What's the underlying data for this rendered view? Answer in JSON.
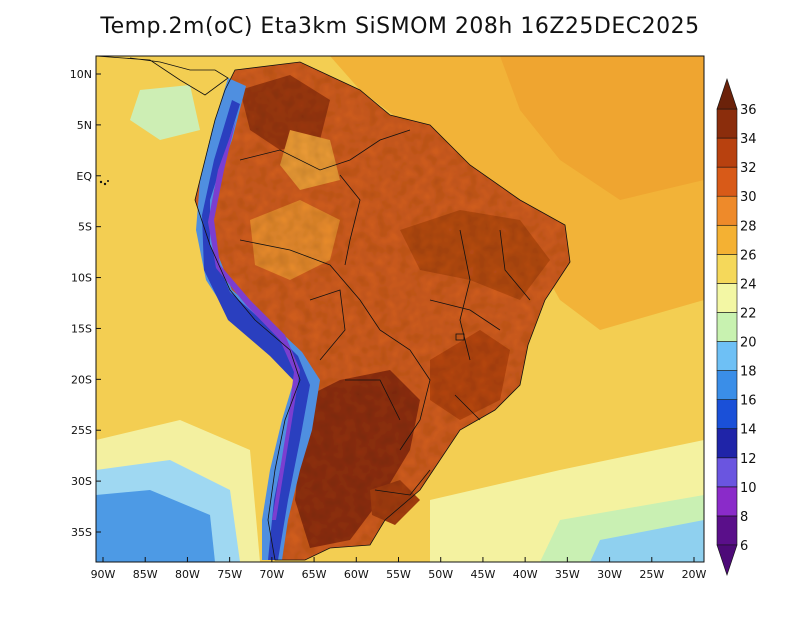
{
  "title": "Temp.2m(oC) Eta3km SiSMOM 208h 16Z25DEC2025",
  "variable": "Temp.2m(oC)",
  "model": "Eta3km SiSMOM",
  "forecast_hour": "208h",
  "valid_time": "16Z25DEC2025",
  "lat_axis": {
    "labels": [
      "10N",
      "5N",
      "EQ",
      "5S",
      "10S",
      "15S",
      "20S",
      "25S",
      "30S",
      "35S"
    ],
    "values": [
      10,
      5,
      0,
      -5,
      -10,
      -15,
      -20,
      -25,
      -30,
      -35
    ]
  },
  "lon_axis": {
    "labels": [
      "90W",
      "85W",
      "80W",
      "75W",
      "70W",
      "65W",
      "60W",
      "55W",
      "50W",
      "45W",
      "40W",
      "35W",
      "30W",
      "25W",
      "20W"
    ],
    "values": [
      -90,
      -85,
      -80,
      -75,
      -70,
      -65,
      -60,
      -55,
      -50,
      -45,
      -40,
      -35,
      -30,
      -25,
      -20
    ]
  },
  "colorbar": {
    "labels": [
      "6",
      "8",
      "10",
      "12",
      "14",
      "16",
      "18",
      "20",
      "22",
      "24",
      "26",
      "28",
      "30",
      "32",
      "34",
      "36"
    ],
    "colors": [
      "#5a0f8a",
      "#8a2bc9",
      "#6a55e0",
      "#1f24a8",
      "#1a50d8",
      "#3a8ee8",
      "#6ec0f5",
      "#c8f2b0",
      "#f3f7a4",
      "#f5d85a",
      "#f4b133",
      "#ee8a2a",
      "#d85a18",
      "#b8410f",
      "#8b2d0c"
    ],
    "below_color": "#4d0a78",
    "above_color": "#6b220a"
  }
}
